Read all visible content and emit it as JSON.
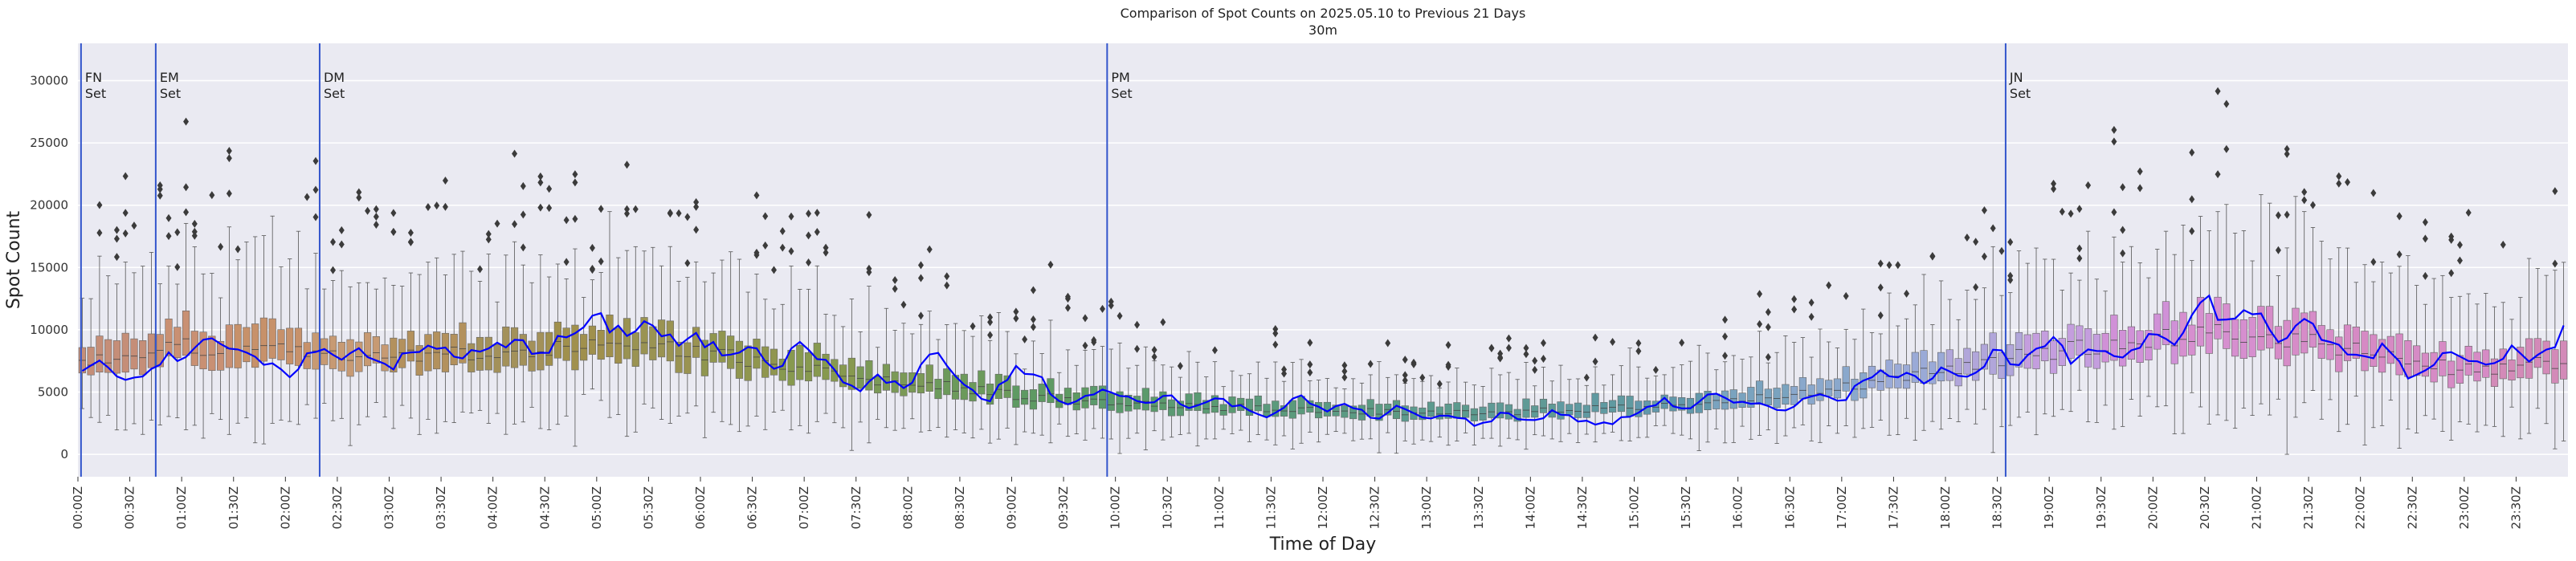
{
  "chart_data": {
    "type": "box",
    "title": "Comparison of Spot Counts on 2025.05.10 to Previous 21 Days",
    "subtitle": "30m",
    "xlabel": "Time of Day",
    "ylabel": "Spot Count",
    "ylim": [
      -1800,
      33000
    ],
    "y_ticks": [
      0,
      5000,
      10000,
      15000,
      20000,
      25000,
      30000
    ],
    "x_ticks": [
      "00:00Z",
      "00:30Z",
      "01:00Z",
      "01:30Z",
      "02:00Z",
      "02:30Z",
      "03:00Z",
      "03:30Z",
      "04:00Z",
      "04:30Z",
      "05:00Z",
      "05:30Z",
      "06:00Z",
      "06:30Z",
      "07:00Z",
      "07:30Z",
      "08:00Z",
      "08:30Z",
      "09:00Z",
      "09:30Z",
      "10:00Z",
      "10:30Z",
      "11:00Z",
      "11:30Z",
      "12:00Z",
      "12:30Z",
      "13:00Z",
      "13:30Z",
      "14:00Z",
      "14:30Z",
      "15:00Z",
      "15:30Z",
      "16:00Z",
      "16:30Z",
      "17:00Z",
      "17:30Z",
      "18:00Z",
      "18:30Z",
      "19:00Z",
      "19:30Z",
      "20:00Z",
      "20:30Z",
      "21:00Z",
      "21:30Z",
      "22:00Z",
      "22:30Z",
      "23:00Z",
      "23:30Z"
    ],
    "bins_per_hour": 12,
    "total_bins": 288,
    "median_profile_hour": [
      [
        0,
        7500
      ],
      [
        0.5,
        8200
      ],
      [
        1,
        8600
      ],
      [
        1.5,
        8600
      ],
      [
        2,
        8400
      ],
      [
        2.5,
        8200
      ],
      [
        3,
        8000
      ],
      [
        3.5,
        8100
      ],
      [
        4,
        8200
      ],
      [
        4.5,
        8500
      ],
      [
        5,
        8700
      ],
      [
        5.5,
        8500
      ],
      [
        6,
        8200
      ],
      [
        6.5,
        7500
      ],
      [
        7,
        6800
      ],
      [
        7.5,
        6200
      ],
      [
        8,
        5800
      ],
      [
        8.5,
        5300
      ],
      [
        9,
        4800
      ],
      [
        9.5,
        4400
      ],
      [
        10,
        4100
      ],
      [
        10.5,
        3900
      ],
      [
        11,
        3800
      ],
      [
        11.5,
        3700
      ],
      [
        12,
        3600
      ],
      [
        12.5,
        3400
      ],
      [
        13,
        3300
      ],
      [
        13.5,
        3300
      ],
      [
        14,
        3400
      ],
      [
        14.5,
        3600
      ],
      [
        15,
        3800
      ],
      [
        15.5,
        4000
      ],
      [
        16,
        4300
      ],
      [
        16.5,
        4700
      ],
      [
        17,
        5300
      ],
      [
        17.5,
        6000
      ],
      [
        18,
        6800
      ],
      [
        18.5,
        7600
      ],
      [
        19,
        8200
      ],
      [
        19.5,
        8800
      ],
      [
        20,
        9300
      ],
      [
        20.5,
        9700
      ],
      [
        21,
        9600
      ],
      [
        21.5,
        9100
      ],
      [
        22,
        8200
      ],
      [
        22.5,
        7300
      ],
      [
        23,
        6800
      ],
      [
        23.5,
        7000
      ],
      [
        24,
        7600
      ]
    ],
    "today_profile_hour": [
      [
        0,
        6300
      ],
      [
        0.25,
        7500
      ],
      [
        0.5,
        5800
      ],
      [
        0.75,
        7600
      ],
      [
        1,
        7800
      ],
      [
        1.25,
        9800
      ],
      [
        1.5,
        8000
      ],
      [
        1.75,
        7500
      ],
      [
        2,
        6200
      ],
      [
        2.25,
        8200
      ],
      [
        2.5,
        8000
      ],
      [
        2.75,
        8500
      ],
      [
        3,
        7000
      ],
      [
        3.25,
        8200
      ],
      [
        3.5,
        8600
      ],
      [
        3.75,
        7800
      ],
      [
        4,
        8500
      ],
      [
        4.25,
        8900
      ],
      [
        4.5,
        8300
      ],
      [
        4.75,
        9600
      ],
      [
        5,
        10800
      ],
      [
        5.25,
        9800
      ],
      [
        5.5,
        10600
      ],
      [
        5.75,
        8800
      ],
      [
        6,
        9200
      ],
      [
        6.25,
        8000
      ],
      [
        6.5,
        9200
      ],
      [
        6.75,
        6800
      ],
      [
        7,
        9300
      ],
      [
        7.25,
        6700
      ],
      [
        7.5,
        5200
      ],
      [
        7.75,
        6200
      ],
      [
        8,
        5200
      ],
      [
        8.25,
        8600
      ],
      [
        8.5,
        5800
      ],
      [
        8.75,
        3900
      ],
      [
        9,
        6800
      ],
      [
        9.25,
        6300
      ],
      [
        9.5,
        3800
      ],
      [
        9.75,
        4700
      ],
      [
        10,
        5200
      ],
      [
        10.25,
        3900
      ],
      [
        10.5,
        4800
      ],
      [
        10.75,
        3800
      ],
      [
        11,
        4500
      ],
      [
        11.25,
        3600
      ],
      [
        11.5,
        3100
      ],
      [
        11.75,
        4700
      ],
      [
        12,
        3400
      ],
      [
        12.25,
        4200
      ],
      [
        12.5,
        2600
      ],
      [
        12.75,
        3900
      ],
      [
        13,
        2700
      ],
      [
        13.25,
        3300
      ],
      [
        13.5,
        2200
      ],
      [
        13.75,
        3400
      ],
      [
        14,
        2600
      ],
      [
        14.25,
        3500
      ],
      [
        14.5,
        2600
      ],
      [
        14.75,
        2400
      ],
      [
        15,
        3200
      ],
      [
        15.25,
        4400
      ],
      [
        15.5,
        3600
      ],
      [
        15.75,
        4800
      ],
      [
        16,
        3900
      ],
      [
        16.25,
        4200
      ],
      [
        16.5,
        3400
      ],
      [
        16.75,
        5100
      ],
      [
        17,
        4400
      ],
      [
        17.25,
        6100
      ],
      [
        17.5,
        6800
      ],
      [
        17.75,
        5800
      ],
      [
        18,
        7200
      ],
      [
        18.25,
        6200
      ],
      [
        18.5,
        8400
      ],
      [
        18.75,
        7100
      ],
      [
        19,
        9200
      ],
      [
        19.25,
        7200
      ],
      [
        19.5,
        8600
      ],
      [
        19.75,
        7800
      ],
      [
        20,
        10200
      ],
      [
        20.25,
        9300
      ],
      [
        20.5,
        12600
      ],
      [
        20.75,
        10400
      ],
      [
        21,
        11800
      ],
      [
        21.25,
        8800
      ],
      [
        21.5,
        10600
      ],
      [
        21.75,
        8600
      ],
      [
        22,
        7600
      ],
      [
        22.25,
        8800
      ],
      [
        22.5,
        6000
      ],
      [
        22.75,
        7900
      ],
      [
        23,
        8100
      ],
      [
        23.25,
        7600
      ],
      [
        23.5,
        8600
      ],
      [
        23.75,
        7400
      ],
      [
        24,
        10500
      ]
    ],
    "box_colors_by_hour": [
      "#c58e78",
      "#c99073",
      "#c7916a",
      "#c79a73",
      "#b3915d",
      "#a3915a",
      "#a0904d",
      "#9a9352",
      "#90964f",
      "#87994f",
      "#7b9957",
      "#6c9a5b",
      "#5e9a63",
      "#5b9a6c",
      "#5b9a73",
      "#5b9a7c",
      "#5b9a83",
      "#5c9a8e",
      "#5f9a96",
      "#609aa1",
      "#6298ab",
      "#7aa3bf",
      "#8aa8cc",
      "#9aaad7",
      "#b1a6da",
      "#c49ede",
      "#d091d7",
      "#d68fcf",
      "#d68cc8",
      "#d68ac4",
      "#d68bc5",
      "#d38ab8"
    ],
    "outlier_markers": "diamond",
    "today_series_name": "2025.05.10",
    "today_series_color": "#0000ff",
    "event_lines": [
      {
        "hour": 0.03,
        "label_line1": "FN",
        "label_line2": "Set"
      },
      {
        "hour": 0.75,
        "label_line1": "EM",
        "label_line2": "Set"
      },
      {
        "hour": 2.33,
        "label_line1": "DM",
        "label_line2": "Set"
      },
      {
        "hour": 9.92,
        "label_line1": "PM",
        "label_line2": "Set"
      },
      {
        "hour": 18.58,
        "label_line1": "JN",
        "label_line2": "Set"
      }
    ],
    "event_line_color": "#3355cc",
    "grid": true,
    "background": "#eaeaf2"
  }
}
